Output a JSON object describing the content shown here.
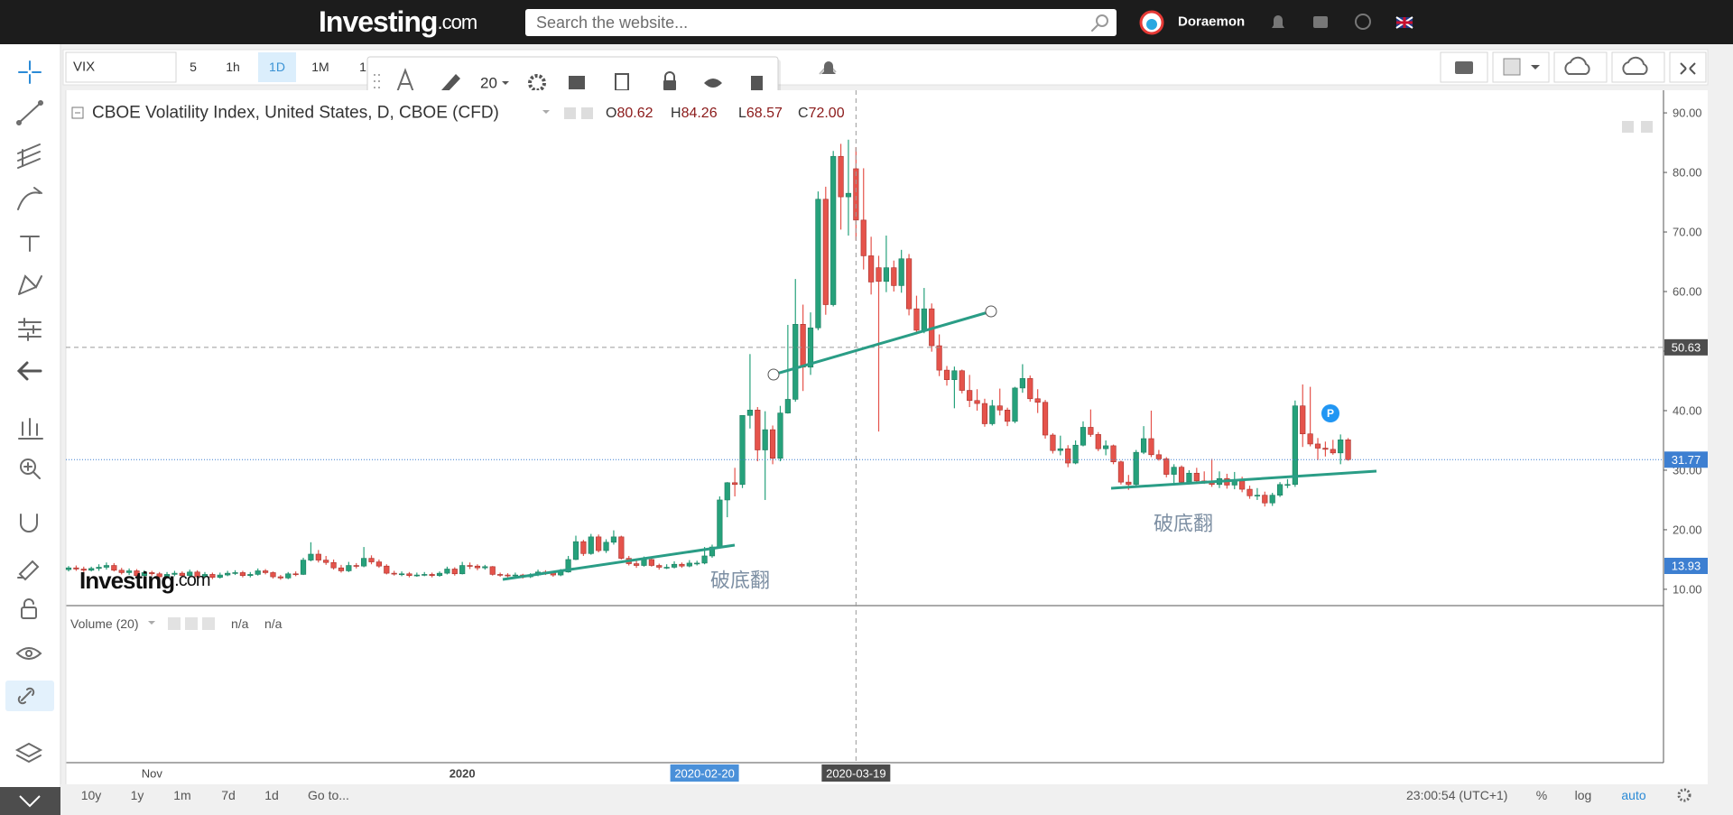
{
  "header": {
    "logo_main": "Investing",
    "logo_suffix": ".com",
    "search_placeholder": "Search the website...",
    "user": "Doraemon"
  },
  "toolbar": {
    "symbol": "VIX",
    "intervals": [
      "5",
      "1h",
      "1D",
      "1M",
      "1"
    ],
    "font_size": "20"
  },
  "watermark": {
    "main": "Investing",
    "suffix": ".com"
  },
  "bottom_bar": {
    "ranges": [
      "10y",
      "1y",
      "1m",
      "7d",
      "1d"
    ],
    "goto": "Go to...",
    "time": "23:00:54 (UTC+1)",
    "options": [
      "%",
      "log",
      "auto"
    ]
  },
  "chart_data": {
    "type": "candlestick",
    "title": "CBOE Volatility Index, United States, D, CBOE (CFD)",
    "ohlc_legend": [
      {
        "key": "O",
        "value": "80.62"
      },
      {
        "key": "H",
        "value": "84.26"
      },
      {
        "key": "L",
        "value": "68.57"
      },
      {
        "key": "C",
        "value": "72.00"
      }
    ],
    "up_color": "#26a17b",
    "down_color": "#e5534b",
    "ylim": [
      7.26,
      93.8
    ],
    "yticks": [
      {
        "value": 10,
        "label": "10.00"
      },
      {
        "value": 20,
        "label": "20.00"
      },
      {
        "value": 30,
        "label": "30.00"
      },
      {
        "value": 40,
        "label": "40.00"
      },
      {
        "value": 50,
        "label": "50.00"
      },
      {
        "value": 60,
        "label": "60.00"
      },
      {
        "value": 70,
        "label": "70.00"
      },
      {
        "value": 80,
        "label": "80.00"
      },
      {
        "value": 90,
        "label": "90.00"
      }
    ],
    "price_markers": [
      {
        "value": 50.63,
        "label": "50.63",
        "color": "#4d4d4d",
        "line": "crosshair"
      },
      {
        "value": 31.77,
        "label": "31.77",
        "color": "#3d7fd1",
        "line": "last"
      },
      {
        "value": 13.93,
        "label": "13.93",
        "color": "#3d7fd1"
      }
    ],
    "crosshair_category": "2020-03-19",
    "category_box_colors": {
      "2020-02-20": "#4a90d9",
      "2020-03-19": "#4b4b4b"
    },
    "annotations": [
      "破底翻",
      "破底翻"
    ],
    "event_badge": "P",
    "volume": {
      "title": "Volume (20)",
      "values": [
        "n/a",
        "n/a"
      ]
    },
    "categories": [
      null,
      null,
      null,
      null,
      null,
      null,
      null,
      null,
      null,
      null,
      null,
      "Nov",
      null,
      null,
      null,
      null,
      null,
      null,
      null,
      null,
      null,
      null,
      null,
      null,
      null,
      null,
      null,
      null,
      null,
      null,
      null,
      null,
      null,
      null,
      null,
      null,
      null,
      null,
      null,
      null,
      null,
      null,
      null,
      null,
      null,
      null,
      null,
      null,
      null,
      null,
      null,
      null,
      "2020",
      null,
      null,
      null,
      null,
      null,
      null,
      null,
      null,
      null,
      null,
      null,
      null,
      null,
      null,
      null,
      null,
      null,
      null,
      null,
      null,
      null,
      null,
      null,
      null,
      null,
      null,
      null,
      null,
      null,
      null,
      null,
      "2020-02-20",
      null,
      null,
      null,
      null,
      null,
      null,
      null,
      null,
      null,
      null,
      null,
      null,
      null,
      null,
      null,
      null,
      null,
      null,
      null,
      "2020-03-19",
      null,
      null,
      null,
      null,
      null,
      null,
      null,
      null,
      null,
      null,
      null,
      null,
      null,
      null,
      null,
      null,
      null,
      null,
      null,
      null,
      null,
      null,
      null,
      null,
      null,
      null,
      null,
      null,
      null,
      null,
      null,
      null,
      null,
      null,
      null,
      null,
      null,
      null,
      null,
      null,
      null,
      null,
      null,
      null,
      null,
      null,
      null,
      null,
      null,
      null,
      null,
      null,
      null,
      null,
      null,
      null,
      null,
      null,
      null,
      null,
      null,
      null,
      null,
      null,
      null
    ],
    "candles": [
      [
        13.3,
        13.9,
        13.0,
        13.6
      ],
      [
        13.6,
        14.0,
        13.1,
        13.4
      ],
      [
        13.4,
        13.8,
        12.9,
        13.2
      ],
      [
        13.2,
        13.8,
        13.0,
        13.5
      ],
      [
        13.5,
        14.2,
        13.1,
        13.7
      ],
      [
        13.7,
        14.5,
        13.3,
        14.0
      ],
      [
        14.0,
        14.4,
        13.0,
        13.2
      ],
      [
        13.2,
        13.6,
        12.5,
        12.8
      ],
      [
        12.8,
        13.5,
        12.4,
        13.1
      ],
      [
        13.1,
        13.4,
        12.0,
        12.3
      ],
      [
        12.3,
        13.2,
        12.0,
        12.8
      ],
      [
        12.8,
        13.1,
        12.3,
        12.6
      ],
      [
        12.6,
        12.9,
        11.8,
        12.1
      ],
      [
        12.1,
        12.9,
        11.9,
        12.5
      ],
      [
        12.5,
        13.1,
        12.2,
        12.7
      ],
      [
        12.7,
        13.0,
        12.0,
        12.3
      ],
      [
        12.3,
        13.3,
        12.1,
        12.9
      ],
      [
        12.9,
        13.2,
        11.8,
        12.1
      ],
      [
        12.1,
        12.9,
        11.9,
        12.5
      ],
      [
        12.5,
        12.8,
        11.7,
        12.0
      ],
      [
        12.0,
        12.8,
        11.8,
        12.4
      ],
      [
        12.4,
        13.1,
        12.2,
        12.7
      ],
      [
        12.7,
        13.2,
        12.4,
        12.8
      ],
      [
        12.8,
        13.1,
        12.0,
        12.3
      ],
      [
        12.3,
        12.9,
        12.0,
        12.5
      ],
      [
        12.5,
        13.5,
        12.3,
        13.1
      ],
      [
        13.1,
        13.4,
        12.5,
        12.8
      ],
      [
        12.8,
        13.0,
        11.8,
        12.1
      ],
      [
        12.1,
        12.4,
        11.6,
        11.9
      ],
      [
        11.9,
        12.9,
        11.7,
        12.6
      ],
      [
        12.6,
        13.0,
        12.2,
        12.5
      ],
      [
        12.5,
        15.3,
        12.4,
        14.9
      ],
      [
        14.9,
        17.9,
        14.7,
        15.9
      ],
      [
        15.9,
        16.6,
        14.5,
        14.9
      ],
      [
        14.9,
        15.6,
        14.1,
        14.5
      ],
      [
        14.5,
        15.0,
        13.3,
        13.6
      ],
      [
        13.6,
        14.1,
        12.8,
        13.1
      ],
      [
        13.1,
        14.6,
        12.9,
        14.0
      ],
      [
        14.0,
        14.4,
        13.5,
        13.9
      ],
      [
        13.9,
        17.1,
        13.7,
        15.2
      ],
      [
        15.2,
        15.7,
        14.2,
        14.6
      ],
      [
        14.6,
        15.0,
        13.6,
        13.9
      ],
      [
        13.9,
        14.2,
        12.5,
        12.7
      ],
      [
        12.7,
        13.1,
        12.3,
        12.6
      ],
      [
        12.6,
        13.0,
        12.2,
        12.6
      ],
      [
        12.6,
        12.9,
        12.0,
        12.3
      ],
      [
        12.3,
        12.8,
        12.1,
        12.4
      ],
      [
        12.4,
        12.9,
        12.2,
        12.5
      ],
      [
        12.5,
        12.8,
        12.0,
        12.3
      ],
      [
        12.3,
        13.0,
        12.1,
        12.7
      ],
      [
        12.7,
        13.8,
        12.5,
        13.4
      ],
      [
        13.4,
        13.7,
        12.3,
        12.6
      ],
      [
        12.6,
        14.6,
        12.5,
        14.0
      ],
      [
        14.0,
        14.5,
        13.4,
        13.9
      ],
      [
        13.9,
        14.2,
        13.2,
        13.6
      ],
      [
        13.6,
        14.1,
        13.3,
        13.8
      ],
      [
        13.8,
        13.9,
        12.3,
        12.5
      ],
      [
        12.5,
        12.8,
        12.1,
        12.4
      ],
      [
        12.4,
        12.7,
        12.0,
        12.3
      ],
      [
        12.3,
        12.8,
        12.1,
        12.4
      ],
      [
        12.4,
        12.6,
        11.8,
        12.1
      ],
      [
        12.1,
        12.7,
        11.9,
        12.4
      ],
      [
        12.4,
        13.3,
        12.2,
        12.9
      ],
      [
        12.9,
        13.2,
        12.4,
        12.8
      ],
      [
        12.8,
        13.0,
        12.1,
        12.4
      ],
      [
        12.4,
        13.4,
        12.2,
        12.9
      ],
      [
        12.9,
        15.6,
        12.8,
        15.0
      ],
      [
        15.0,
        19.0,
        14.9,
        18.0
      ],
      [
        18.0,
        18.3,
        15.6,
        16.0
      ],
      [
        16.0,
        19.3,
        15.8,
        18.8
      ],
      [
        18.8,
        19.2,
        16.2,
        16.5
      ],
      [
        16.5,
        18.4,
        16.1,
        17.9
      ],
      [
        17.9,
        19.9,
        17.5,
        18.8
      ],
      [
        18.8,
        19.0,
        15.0,
        15.2
      ],
      [
        15.2,
        15.6,
        14.0,
        14.3
      ],
      [
        14.3,
        14.8,
        13.6,
        14.0
      ],
      [
        14.0,
        15.5,
        13.8,
        15.0
      ],
      [
        15.0,
        15.3,
        13.8,
        14.0
      ],
      [
        14.0,
        14.3,
        13.3,
        13.7
      ],
      [
        13.7,
        14.2,
        13.4,
        13.7
      ],
      [
        13.7,
        14.7,
        13.5,
        14.2
      ],
      [
        14.2,
        14.5,
        13.6,
        13.9
      ],
      [
        13.9,
        14.9,
        13.7,
        14.4
      ],
      [
        14.4,
        14.8,
        14.0,
        14.4
      ],
      [
        14.4,
        17.1,
        14.2,
        15.6
      ],
      [
        15.6,
        17.5,
        15.3,
        17.1
      ],
      [
        17.1,
        25.6,
        17.0,
        25.0
      ],
      [
        25.0,
        28.0,
        22.1,
        27.9
      ],
      [
        27.9,
        30.4,
        25.6,
        27.6
      ],
      [
        27.6,
        39.2,
        27.0,
        39.2
      ],
      [
        39.2,
        49.5,
        37.0,
        40.1
      ],
      [
        40.1,
        40.6,
        31.5,
        33.4
      ],
      [
        33.4,
        39.9,
        25.0,
        36.8
      ],
      [
        36.8,
        37.5,
        31.0,
        32.0
      ],
      [
        32.0,
        40.8,
        31.5,
        39.6
      ],
      [
        39.6,
        54.4,
        39.5,
        41.9
      ],
      [
        41.9,
        62.1,
        41.5,
        54.5
      ],
      [
        54.5,
        57.8,
        43.3,
        47.3
      ],
      [
        47.3,
        56.5,
        46.0,
        53.9
      ],
      [
        53.9,
        76.8,
        53.5,
        75.5
      ],
      [
        75.5,
        77.6,
        56.1,
        57.8
      ],
      [
        57.8,
        83.6,
        57.5,
        82.7
      ],
      [
        82.7,
        84.8,
        70.4,
        75.9
      ],
      [
        75.9,
        85.5,
        69.4,
        76.5
      ],
      [
        80.62,
        84.26,
        68.57,
        72
      ],
      [
        72.0,
        80.7,
        63.7,
        66.0
      ],
      [
        66.0,
        69.2,
        59.5,
        61.6
      ],
      [
        64.0,
        66.0,
        36.5,
        61.7
      ],
      [
        61.7,
        69.4,
        59.9,
        64.0
      ],
      [
        64.0,
        65.2,
        60.0,
        61.0
      ],
      [
        61.0,
        67.0,
        59.8,
        65.5
      ],
      [
        65.5,
        66.3,
        56.0,
        57.1
      ],
      [
        57.1,
        59.3,
        52.8,
        53.5
      ],
      [
        53.5,
        60.6,
        53.0,
        57.1
      ],
      [
        57.1,
        58.0,
        49.9,
        50.9
      ],
      [
        50.9,
        52.8,
        45.8,
        46.8
      ],
      [
        46.8,
        47.5,
        44.2,
        45.2
      ],
      [
        45.2,
        47.4,
        40.4,
        46.7
      ],
      [
        46.7,
        46.9,
        42.9,
        43.4
      ],
      [
        43.4,
        46.0,
        40.6,
        41.7
      ],
      [
        41.7,
        43.6,
        40.0,
        41.2
      ],
      [
        41.2,
        42.0,
        37.3,
        37.8
      ],
      [
        37.8,
        41.8,
        37.5,
        40.8
      ],
      [
        40.8,
        43.7,
        39.2,
        40.1
      ],
      [
        40.1,
        40.5,
        37.4,
        38.2
      ],
      [
        38.2,
        44.0,
        37.9,
        43.8
      ],
      [
        43.8,
        47.8,
        43.0,
        45.4
      ],
      [
        45.4,
        45.9,
        41.5,
        42.0
      ],
      [
        42.0,
        43.6,
        39.6,
        41.4
      ],
      [
        41.4,
        41.8,
        35.3,
        35.9
      ],
      [
        35.9,
        36.2,
        32.8,
        33.3
      ],
      [
        33.3,
        35.8,
        32.5,
        33.6
      ],
      [
        33.6,
        34.2,
        30.5,
        31.2
      ],
      [
        31.2,
        35.0,
        31.0,
        34.2
      ],
      [
        34.2,
        38.2,
        34.0,
        37.2
      ],
      [
        37.2,
        40.2,
        35.6,
        36.0
      ],
      [
        36.0,
        36.4,
        33.2,
        33.6
      ],
      [
        33.6,
        35.0,
        32.5,
        34.1
      ],
      [
        34.1,
        34.3,
        31.0,
        31.4
      ],
      [
        31.4,
        31.6,
        27.6,
        28.0
      ],
      [
        28.0,
        29.2,
        26.7,
        27.6
      ],
      [
        27.6,
        33.4,
        27.2,
        33.0
      ],
      [
        33.0,
        37.4,
        32.7,
        35.3
      ],
      [
        35.3,
        40.0,
        32.2,
        32.6
      ],
      [
        32.6,
        33.4,
        31.6,
        31.9
      ],
      [
        31.9,
        32.2,
        28.8,
        29.3
      ],
      [
        29.3,
        31.0,
        27.6,
        30.5
      ],
      [
        30.5,
        30.8,
        27.6,
        28.0
      ],
      [
        28.0,
        30.0,
        27.6,
        29.5
      ],
      [
        29.5,
        30.4,
        28.0,
        28.2
      ],
      [
        28.2,
        29.8,
        27.7,
        28.0
      ],
      [
        28.0,
        31.9,
        27.2,
        27.6
      ],
      [
        27.6,
        29.8,
        27.0,
        28.6
      ],
      [
        28.6,
        29.4,
        26.9,
        27.5
      ],
      [
        27.5,
        29.7,
        26.8,
        28.2
      ],
      [
        28.2,
        28.9,
        26.3,
        26.8
      ],
      [
        26.8,
        27.4,
        25.2,
        25.7
      ],
      [
        25.7,
        27.0,
        25.0,
        25.8
      ],
      [
        25.8,
        26.4,
        23.9,
        24.5
      ],
      [
        24.5,
        26.2,
        24.0,
        25.8
      ],
      [
        25.8,
        28.0,
        25.5,
        27.6
      ],
      [
        27.6,
        28.5,
        27.0,
        27.6
      ],
      [
        27.6,
        41.7,
        27.2,
        40.8
      ],
      [
        40.8,
        44.4,
        33.9,
        36.1
      ],
      [
        36.1,
        44.0,
        34.0,
        34.4
      ],
      [
        34.4,
        35.4,
        31.7,
        33.7
      ],
      [
        33.7,
        34.8,
        32.3,
        33.5
      ],
      [
        33.5,
        35.1,
        32.6,
        32.9
      ],
      [
        32.9,
        36.0,
        31.0,
        35.1
      ],
      [
        35.1,
        35.4,
        31.6,
        31.77
      ]
    ]
  }
}
